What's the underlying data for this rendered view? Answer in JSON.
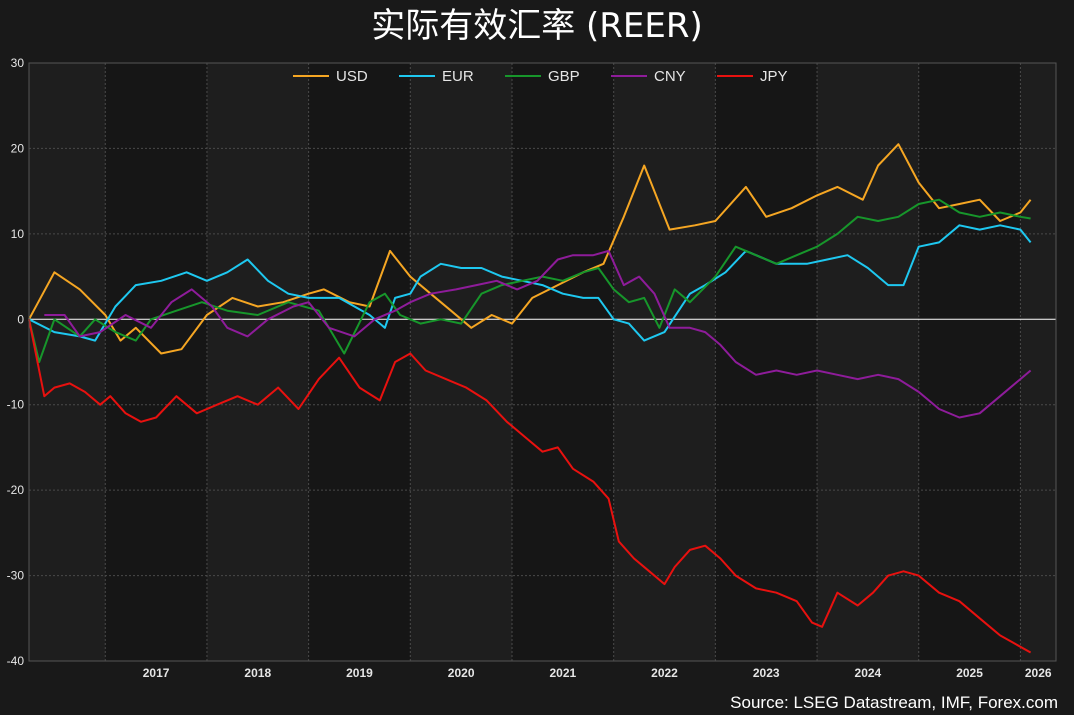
{
  "chart_data": {
    "type": "line",
    "title": "实际有效汇率 (REER)",
    "source": "Source: LSEG Datastream, IMF, Forex.com",
    "ylim": [
      -40,
      30
    ],
    "yticks": [
      30,
      20,
      10,
      0,
      -10,
      -20,
      -30,
      -40
    ],
    "xlim": [
      2016.25,
      2026.35
    ],
    "xticks": [
      "2017",
      "2018",
      "2019",
      "2020",
      "2021",
      "2022",
      "2023",
      "2024",
      "2025",
      "2026"
    ],
    "grid": true,
    "legend_position": "top-center",
    "series": [
      {
        "name": "USD",
        "color": "#f5a623",
        "x": [
          2016.25,
          2016.5,
          2016.75,
          2017.0,
          2017.15,
          2017.3,
          2017.55,
          2017.75,
          2018.0,
          2018.25,
          2018.5,
          2018.75,
          2019.0,
          2019.15,
          2019.4,
          2019.6,
          2019.8,
          2020.0,
          2020.2,
          2020.4,
          2020.6,
          2020.8,
          2021.0,
          2021.2,
          2021.45,
          2021.7,
          2021.9,
          2022.1,
          2022.3,
          2022.55,
          2022.8,
          2023.0,
          2023.3,
          2023.5,
          2023.75,
          2024.0,
          2024.2,
          2024.45,
          2024.6,
          2024.8,
          2025.0,
          2025.2,
          2025.4,
          2025.6,
          2025.8,
          2026.0,
          2026.1
        ],
        "y": [
          0,
          5.5,
          3.5,
          0.5,
          -2.5,
          -1.0,
          -4.0,
          -3.5,
          0.5,
          2.5,
          1.5,
          2.0,
          3.0,
          3.5,
          2.0,
          1.5,
          8.0,
          5.0,
          3.0,
          1.0,
          -1.0,
          0.5,
          -0.5,
          2.5,
          4.0,
          5.5,
          6.5,
          12.0,
          18.0,
          10.5,
          11.0,
          11.5,
          15.5,
          12.0,
          13.0,
          14.5,
          15.5,
          14.0,
          18.0,
          20.5,
          16.0,
          13.0,
          13.5,
          14.0,
          11.5,
          12.5,
          14.0
        ]
      },
      {
        "name": "EUR",
        "color": "#1ec8f0",
        "x": [
          2016.25,
          2016.5,
          2016.75,
          2016.9,
          2017.1,
          2017.3,
          2017.55,
          2017.8,
          2018.0,
          2018.2,
          2018.4,
          2018.6,
          2018.8,
          2019.0,
          2019.3,
          2019.6,
          2019.75,
          2019.85,
          2020.0,
          2020.1,
          2020.3,
          2020.5,
          2020.7,
          2020.9,
          2021.1,
          2021.3,
          2021.5,
          2021.7,
          2021.85,
          2022.0,
          2022.15,
          2022.3,
          2022.5,
          2022.75,
          2022.9,
          2023.1,
          2023.3,
          2023.6,
          2023.9,
          2024.1,
          2024.3,
          2024.5,
          2024.7,
          2024.85,
          2025.0,
          2025.2,
          2025.4,
          2025.6,
          2025.8,
          2026.0,
          2026.1
        ],
        "y": [
          0,
          -1.5,
          -2.0,
          -2.5,
          1.5,
          4.0,
          4.5,
          5.5,
          4.5,
          5.5,
          7.0,
          4.5,
          3.0,
          2.5,
          2.5,
          0.5,
          -1.0,
          2.5,
          3.0,
          5.0,
          6.5,
          6.0,
          6.0,
          5.0,
          4.5,
          4.0,
          3.0,
          2.5,
          2.5,
          0.0,
          -0.5,
          -2.5,
          -1.5,
          3.0,
          4.0,
          5.5,
          8.0,
          6.5,
          6.5,
          7.0,
          7.5,
          6.0,
          4.0,
          4.0,
          8.5,
          9.0,
          11.0,
          10.5,
          11.0,
          10.5,
          9.0
        ]
      },
      {
        "name": "GBP",
        "color": "#17962b",
        "x": [
          2016.25,
          2016.35,
          2016.5,
          2016.75,
          2016.9,
          2017.1,
          2017.3,
          2017.45,
          2017.7,
          2017.95,
          2018.2,
          2018.5,
          2018.8,
          2019.1,
          2019.35,
          2019.6,
          2019.75,
          2019.9,
          2020.1,
          2020.3,
          2020.5,
          2020.7,
          2020.9,
          2021.1,
          2021.3,
          2021.5,
          2021.7,
          2021.85,
          2022.0,
          2022.15,
          2022.3,
          2022.45,
          2022.6,
          2022.75,
          2023.0,
          2023.2,
          2023.4,
          2023.6,
          2023.8,
          2024.0,
          2024.2,
          2024.4,
          2024.6,
          2024.8,
          2025.0,
          2025.2,
          2025.4,
          2025.6,
          2025.8,
          2026.0,
          2026.1
        ],
        "y": [
          0,
          -5.0,
          0.0,
          -2.0,
          0.0,
          -1.5,
          -2.5,
          0.0,
          1.0,
          2.0,
          1.0,
          0.5,
          2.0,
          1.0,
          -4.0,
          2.0,
          3.0,
          0.5,
          -0.5,
          0.0,
          -0.5,
          3.0,
          4.0,
          4.5,
          5.0,
          4.5,
          5.5,
          6.0,
          3.5,
          2.0,
          2.5,
          -1.0,
          3.5,
          2.0,
          5.0,
          8.5,
          7.5,
          6.5,
          7.5,
          8.5,
          10.0,
          12.0,
          11.5,
          12.0,
          13.5,
          14.0,
          12.5,
          12.0,
          12.5,
          12.0,
          11.8
        ]
      },
      {
        "name": "CNY",
        "color": "#8e1c9a",
        "x": [
          2016.4,
          2016.6,
          2016.75,
          2016.95,
          2017.2,
          2017.45,
          2017.65,
          2017.85,
          2018.05,
          2018.2,
          2018.4,
          2018.6,
          2018.85,
          2019.0,
          2019.2,
          2019.45,
          2019.65,
          2019.85,
          2020.0,
          2020.2,
          2020.45,
          2020.65,
          2020.85,
          2021.05,
          2021.25,
          2021.45,
          2021.6,
          2021.8,
          2021.95,
          2022.1,
          2022.25,
          2022.4,
          2022.55,
          2022.75,
          2022.9,
          2023.05,
          2023.2,
          2023.4,
          2023.6,
          2023.8,
          2024.0,
          2024.2,
          2024.4,
          2024.6,
          2024.8,
          2025.0,
          2025.2,
          2025.4,
          2025.6,
          2025.8,
          2026.0,
          2026.1
        ],
        "y": [
          0.5,
          0.5,
          -2.0,
          -1.5,
          0.5,
          -1.0,
          2.0,
          3.5,
          1.5,
          -1.0,
          -2.0,
          0.0,
          1.5,
          2.0,
          -1.0,
          -2.0,
          0.0,
          1.0,
          2.0,
          3.0,
          3.5,
          4.0,
          4.5,
          3.5,
          4.5,
          7.0,
          7.5,
          7.5,
          8.0,
          4.0,
          5.0,
          3.0,
          -1.0,
          -1.0,
          -1.5,
          -3.0,
          -5.0,
          -6.5,
          -6.0,
          -6.5,
          -6.0,
          -6.5,
          -7.0,
          -6.5,
          -7.0,
          -8.5,
          -10.5,
          -11.5,
          -11.0,
          -9.0,
          -7.0,
          -6.0
        ]
      },
      {
        "name": "JPY",
        "color": "#e8110f",
        "x": [
          2016.25,
          2016.4,
          2016.5,
          2016.65,
          2016.8,
          2016.95,
          2017.05,
          2017.2,
          2017.35,
          2017.5,
          2017.7,
          2017.9,
          2018.1,
          2018.3,
          2018.5,
          2018.7,
          2018.9,
          2019.1,
          2019.3,
          2019.5,
          2019.7,
          2019.85,
          2020.0,
          2020.15,
          2020.35,
          2020.55,
          2020.75,
          2020.95,
          2021.15,
          2021.3,
          2021.45,
          2021.6,
          2021.8,
          2021.95,
          2022.05,
          2022.2,
          2022.35,
          2022.5,
          2022.6,
          2022.75,
          2022.9,
          2023.05,
          2023.2,
          2023.4,
          2023.6,
          2023.8,
          2023.95,
          2024.05,
          2024.2,
          2024.4,
          2024.55,
          2024.7,
          2024.85,
          2025.0,
          2025.2,
          2025.4,
          2025.6,
          2025.8,
          2025.95,
          2026.1
        ],
        "y": [
          0,
          -9.0,
          -8.0,
          -7.5,
          -8.5,
          -10.0,
          -9.0,
          -11.0,
          -12.0,
          -11.5,
          -9.0,
          -11.0,
          -10.0,
          -9.0,
          -10.0,
          -8.0,
          -10.5,
          -7.0,
          -4.5,
          -8.0,
          -9.5,
          -5.0,
          -4.0,
          -6.0,
          -7.0,
          -8.0,
          -9.5,
          -12.0,
          -14.0,
          -15.5,
          -15.0,
          -17.5,
          -19.0,
          -21.0,
          -26.0,
          -28.0,
          -29.5,
          -31.0,
          -29.0,
          -27.0,
          -26.5,
          -28.0,
          -30.0,
          -31.5,
          -32.0,
          -33.0,
          -35.5,
          -36.0,
          -32.0,
          -33.5,
          -32.0,
          -30.0,
          -29.5,
          -30.0,
          -32.0,
          -33.0,
          -35.0,
          -37.0,
          -38.0,
          -39.0
        ]
      }
    ]
  }
}
